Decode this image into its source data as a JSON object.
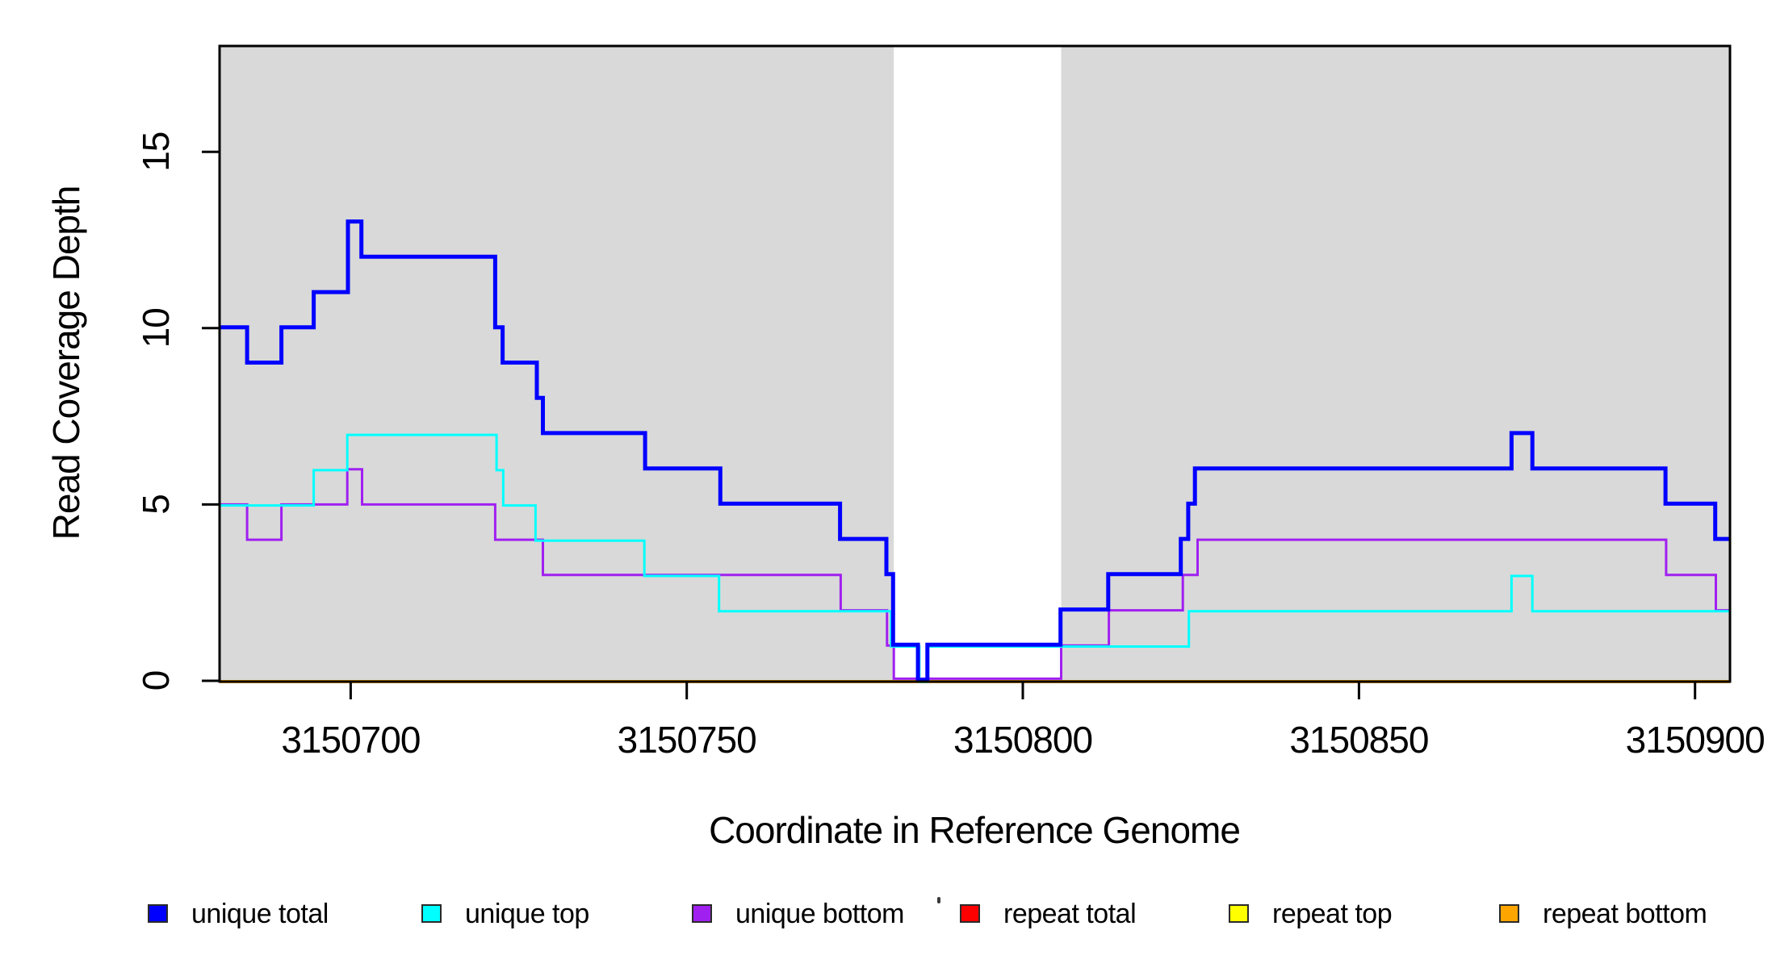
{
  "chart_data": {
    "type": "line",
    "step": true,
    "title": "",
    "xlabel": "Coordinate in Reference Genome",
    "ylabel": "Read Coverage Depth",
    "xlim": [
      3150680.5,
      3150905.2
    ],
    "ylim": [
      0,
      18
    ],
    "x_ticks": [
      3150700,
      3150750,
      3150800,
      3150850,
      3150900
    ],
    "y_ticks": [
      0,
      5,
      10,
      15
    ],
    "grid": false,
    "legend_position": "bottom",
    "shade_color": "#d9d9d9",
    "shaded_regions": [
      [
        3150680.5,
        3150780.8
      ],
      [
        3150805.7,
        3150905.2
      ]
    ],
    "series": [
      {
        "name": "unique total",
        "color": "#0000ff",
        "width": 5,
        "steps": [
          [
            3150680.5,
            10
          ],
          [
            3150684.6,
            9
          ],
          [
            3150689.7,
            10
          ],
          [
            3150694.5,
            11
          ],
          [
            3150699.6,
            13
          ],
          [
            3150701.6,
            12
          ],
          [
            3150721.5,
            10
          ],
          [
            3150722.6,
            9
          ],
          [
            3150727.7,
            8
          ],
          [
            3150728.6,
            7
          ],
          [
            3150743.8,
            6
          ],
          [
            3150755.0,
            5
          ],
          [
            3150772.8,
            4
          ],
          [
            3150779.7,
            3
          ],
          [
            3150780.7,
            1
          ],
          [
            3150784.4,
            0
          ],
          [
            3150785.8,
            1
          ],
          [
            3150805.6,
            2
          ],
          [
            3150812.7,
            3
          ],
          [
            3150823.5,
            4
          ],
          [
            3150824.6,
            5
          ],
          [
            3150825.6,
            6
          ],
          [
            3150872.7,
            7
          ],
          [
            3150875.8,
            6
          ],
          [
            3150895.6,
            5
          ],
          [
            3150903.0,
            4
          ]
        ]
      },
      {
        "name": "unique top",
        "color": "#00ffff",
        "width": 3,
        "steps": [
          [
            3150680.5,
            5
          ],
          [
            3150694.5,
            6
          ],
          [
            3150699.5,
            7
          ],
          [
            3150721.7,
            6
          ],
          [
            3150722.7,
            5
          ],
          [
            3150727.5,
            4
          ],
          [
            3150743.7,
            3
          ],
          [
            3150754.8,
            2
          ],
          [
            3150780.4,
            1
          ],
          [
            3150784.6,
            0
          ],
          [
            3150785.9,
            1
          ],
          [
            3150824.7,
            2
          ],
          [
            3150872.7,
            3
          ],
          [
            3150875.8,
            2
          ]
        ]
      },
      {
        "name": "unique bottom",
        "color": "#a020f0",
        "width": 3,
        "steps": [
          [
            3150680.5,
            5
          ],
          [
            3150684.6,
            4
          ],
          [
            3150689.7,
            5
          ],
          [
            3150699.5,
            6
          ],
          [
            3150701.7,
            5
          ],
          [
            3150721.5,
            4
          ],
          [
            3150728.6,
            3
          ],
          [
            3150772.9,
            2
          ],
          [
            3150779.8,
            1
          ],
          [
            3150780.8,
            0
          ],
          [
            3150805.7,
            1
          ],
          [
            3150812.8,
            2
          ],
          [
            3150823.8,
            3
          ],
          [
            3150826.0,
            4
          ],
          [
            3150895.7,
            3
          ],
          [
            3150903.1,
            2
          ]
        ]
      },
      {
        "name": "repeat total",
        "color": "#ff0000",
        "width": 3,
        "steps": [
          [
            3150680.5,
            0
          ]
        ]
      },
      {
        "name": "repeat top",
        "color": "#ffff00",
        "width": 3,
        "steps": [
          [
            3150680.5,
            0
          ]
        ]
      },
      {
        "name": "repeat bottom",
        "color": "#ffa500",
        "width": 4,
        "steps": [
          [
            3150680.5,
            0
          ]
        ]
      }
    ],
    "stray_mark": {
      "present": true,
      "color": "#3a3a3a"
    }
  }
}
